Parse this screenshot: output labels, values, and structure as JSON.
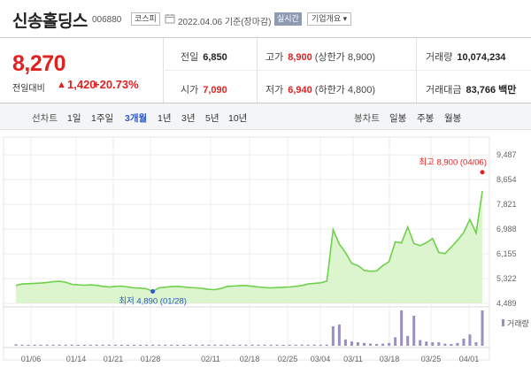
{
  "header": {
    "stock_name": "신송홀딩스",
    "stock_code": "006880",
    "market": "코스피",
    "date_text": "2022.04.06 기준(장마감)",
    "realtime_label": "실시간",
    "overview_label": "기업개요 ▾"
  },
  "summary": {
    "current_price": "8,270",
    "change_label": "전일대비",
    "change_arrow": "▲",
    "change_value": "1,420",
    "change_percent": "+20.73%",
    "prev_close_label": "전일",
    "prev_close": "6,850",
    "high_label": "고가",
    "high": "8,900",
    "high_note": "(상한가 8,900)",
    "volume_label": "거래량",
    "volume": "10,074,234",
    "open_label": "시가",
    "open": "7,090",
    "low_label": "저가",
    "low": "6,940",
    "low_note": "(하한가 4,800)",
    "amount_label": "거래대금",
    "amount": "83,766 백만"
  },
  "toolbar": {
    "line_chart_label": "선차트",
    "periods": [
      "1일",
      "1주일",
      "3개월",
      "1년",
      "3년",
      "5년",
      "10년"
    ],
    "selected_period": "3개월",
    "candle_chart_label": "봉차트",
    "candle_periods": [
      "일봉",
      "주봉",
      "월봉"
    ]
  },
  "colors": {
    "up": "#e22020",
    "accent": "#2b57c9",
    "line": "#6fd04b",
    "fill": "#dcf5cf",
    "volume_bar": "#9b8fc2"
  },
  "chart_data": {
    "type": "area",
    "y_ticks": [
      "9,487",
      "8,654",
      "7,821",
      "6,988",
      "6,155",
      "5,322",
      "4,489"
    ],
    "ylim": [
      4489,
      9487
    ],
    "x_tick_labels": [
      "01/06",
      "01/14",
      "01/21",
      "01/28",
      "02/11",
      "02/18",
      "02/25",
      "03/04",
      "03/11",
      "03/18",
      "03/25",
      "04/01"
    ],
    "high_annotation": "최고 8,900 (04/06)",
    "low_annotation": "최저 4,890 (01/28)",
    "volume_label": "거래량",
    "series": [
      {
        "values": [
          5090,
          5140,
          5150,
          5160,
          5170,
          5190,
          5220,
          5230,
          5200,
          5130,
          5110,
          5100,
          5110,
          5090,
          5060,
          5040,
          5060,
          5070,
          5040,
          5010,
          5000,
          4980,
          4890,
          5010,
          5030,
          5050,
          5060,
          5040,
          5020,
          5010,
          4990,
          4960,
          4950,
          4990,
          5060,
          5070,
          5080,
          5090,
          5060,
          5040,
          5020,
          5010,
          5020,
          5030,
          5040,
          5060,
          5090,
          5140,
          5160,
          5180,
          5240,
          6970,
          6480,
          6200,
          5830,
          5760,
          5600,
          5570,
          5580,
          5760,
          5890,
          6560,
          6520,
          7060,
          6500,
          6430,
          6530,
          6670,
          6200,
          6160,
          6380,
          6610,
          6870,
          7310,
          6850,
          8270
        ]
      }
    ],
    "volume": [
      0.04,
      0.03,
      0.03,
      0.03,
      0.03,
      0.03,
      0.03,
      0.03,
      0.03,
      0.03,
      0.03,
      0.03,
      0.03,
      0.03,
      0.03,
      0.03,
      0.03,
      0.03,
      0.03,
      0.03,
      0.03,
      0.03,
      0.03,
      0.03,
      0.03,
      0.03,
      0.03,
      0.03,
      0.03,
      0.03,
      0.03,
      0.03,
      0.03,
      0.03,
      0.03,
      0.03,
      0.03,
      0.03,
      0.03,
      0.03,
      0.03,
      0.03,
      0.03,
      0.03,
      0.03,
      0.03,
      0.03,
      0.03,
      0.03,
      0.03,
      0.03,
      0.55,
      0.6,
      0.18,
      0.12,
      0.1,
      0.08,
      0.06,
      0.05,
      0.06,
      0.08,
      0.24,
      1.0,
      0.28,
      0.85,
      0.16,
      0.12,
      0.1,
      0.1,
      0.06,
      0.05,
      0.08,
      0.2,
      0.32,
      0.1,
      1.0
    ]
  }
}
